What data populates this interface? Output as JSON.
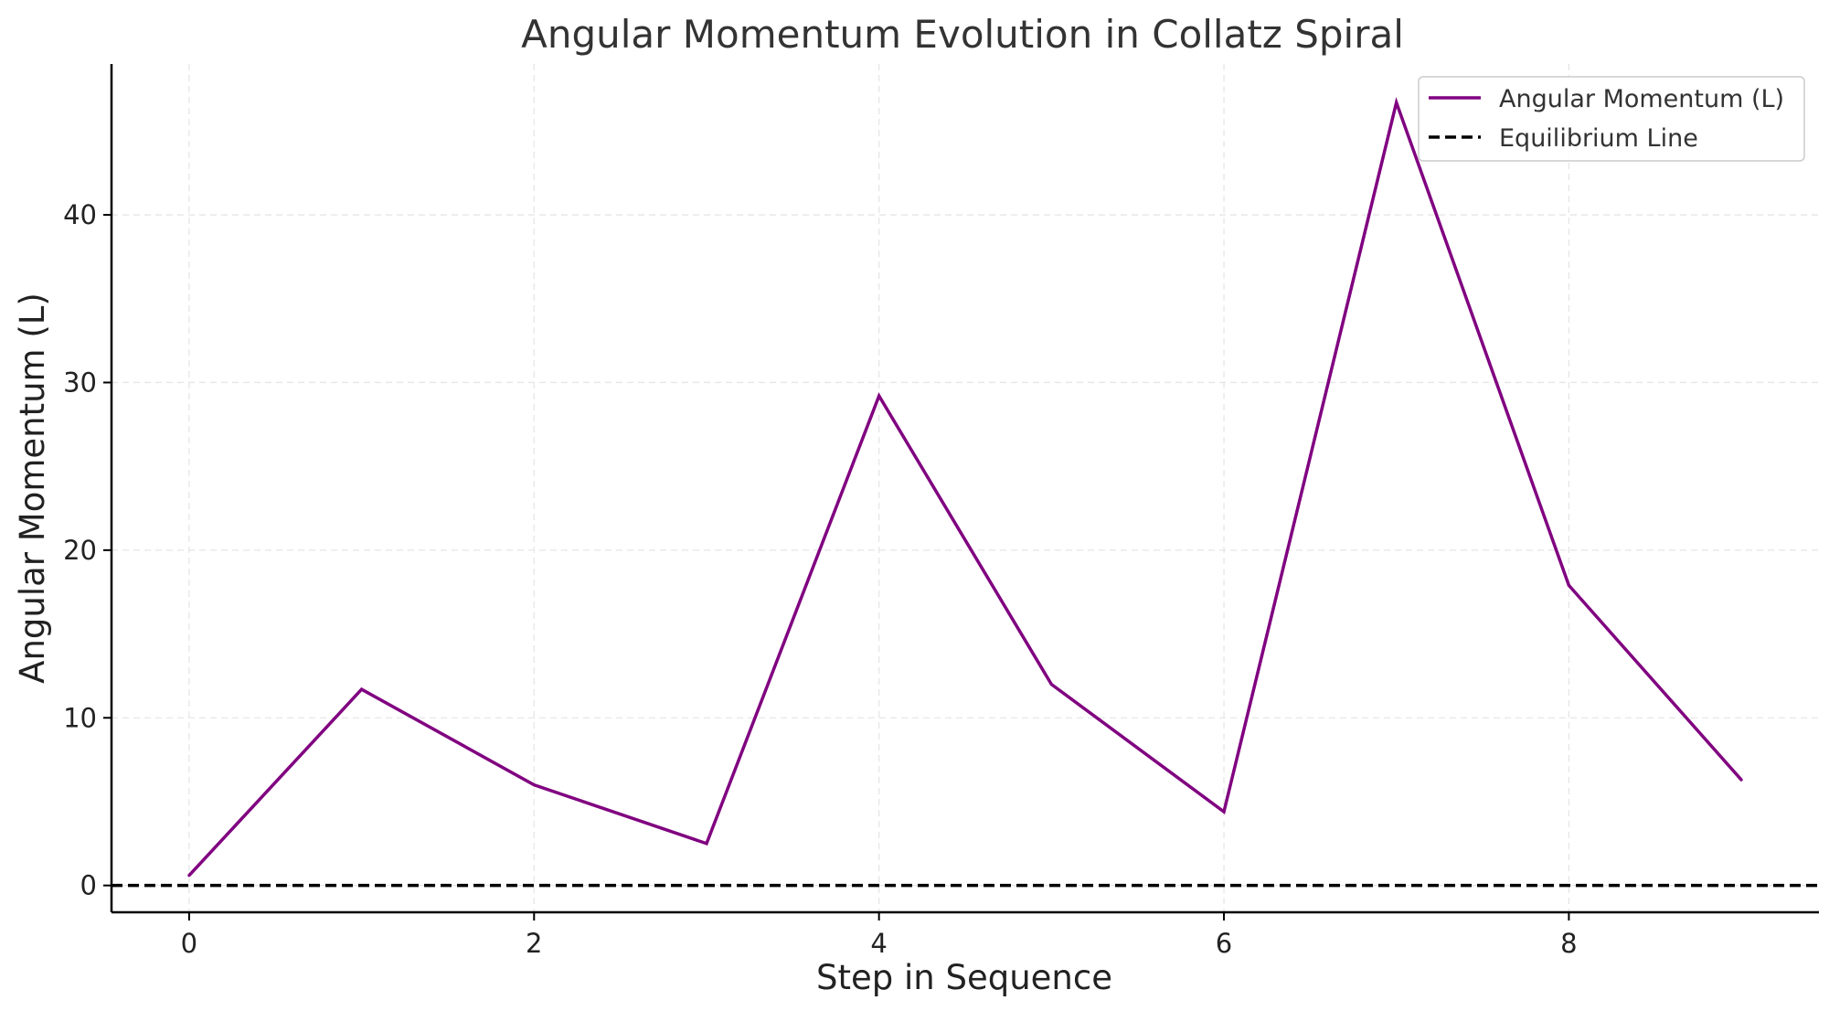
{
  "chart_data": {
    "type": "line",
    "title": "Angular Momentum Evolution in Collatz Spiral",
    "xlabel": "Step in Sequence",
    "ylabel": "Angular Momentum (L)",
    "xlim": [
      -0.45,
      9.45
    ],
    "ylim": [
      -1.6,
      49.0
    ],
    "xticks": [
      0,
      2,
      4,
      6,
      8
    ],
    "yticks": [
      0,
      10,
      20,
      30,
      40
    ],
    "grid": true,
    "legend_position": "top-right",
    "series": [
      {
        "name": "Angular Momentum (L)",
        "color": "#800080",
        "style": "solid",
        "x": [
          0,
          1,
          2,
          3,
          4,
          5,
          6,
          7,
          8,
          9
        ],
        "y": [
          0.6,
          11.7,
          6.0,
          2.5,
          29.2,
          12.0,
          4.4,
          46.7,
          17.9,
          6.3
        ]
      },
      {
        "name": "Equilibrium Line",
        "color": "#000000",
        "style": "dashed",
        "y_constant": 0
      }
    ]
  }
}
